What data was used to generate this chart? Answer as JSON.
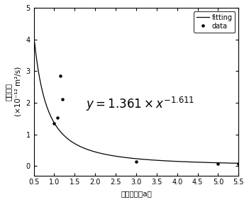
{
  "title": "",
  "xlabel": "暴露龄期（a）",
  "ylabel": "扩散系数（×10⁻¹² m²/s）",
  "ylabel_line1": "扩散系数",
  "ylabel_line2": "(×10⁻¹² m²/s)",
  "xlim": [
    0.5,
    5.5
  ],
  "ylim": [
    -0.3,
    5
  ],
  "xticks": [
    0.5,
    1.0,
    1.5,
    2.0,
    2.5,
    3.0,
    3.5,
    4.0,
    4.5,
    5.0,
    5.5
  ],
  "yticks": [
    0,
    1,
    2,
    3,
    4,
    5
  ],
  "coeff": 1.361,
  "exponent": -1.611,
  "data_x": [
    1.0,
    1.07,
    1.15,
    1.2,
    3.0,
    5.0,
    5.5
  ],
  "data_y": [
    1.35,
    1.52,
    2.85,
    2.1,
    0.15,
    0.07,
    0.08
  ],
  "fit_color": "#000000",
  "data_color": "#000000",
  "bg_color": "#ffffff",
  "legend_fitting": "fitting",
  "legend_data": "data",
  "eq_x": 3.1,
  "eq_y": 1.95,
  "eq_fontsize": 12,
  "tick_fontsize": 7,
  "label_fontsize": 7.5,
  "legend_fontsize": 7
}
